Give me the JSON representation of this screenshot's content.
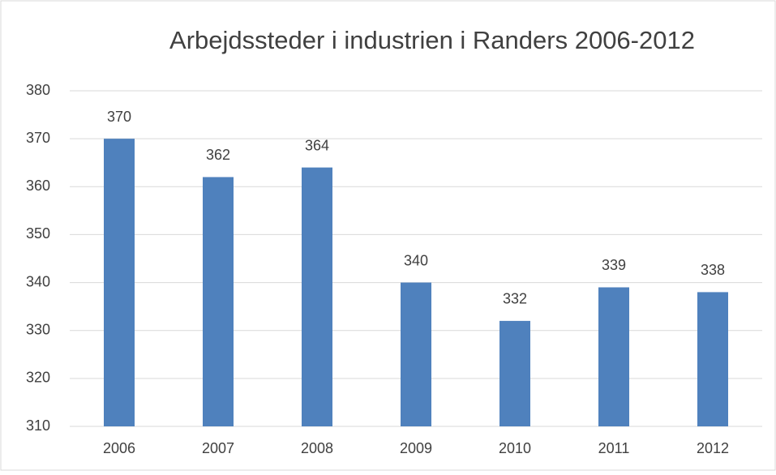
{
  "chart_data": {
    "type": "bar",
    "title": "Arbejdssteder i industrien i Randers 2006-2012",
    "categories": [
      "2006",
      "2007",
      "2008",
      "2009",
      "2010",
      "2011",
      "2012"
    ],
    "values": [
      370,
      362,
      364,
      340,
      332,
      339,
      338
    ],
    "color": "#4f81bd",
    "ylim": [
      310,
      380
    ],
    "yticks": [
      310,
      320,
      330,
      340,
      350,
      360,
      370,
      380
    ],
    "grid": true
  }
}
